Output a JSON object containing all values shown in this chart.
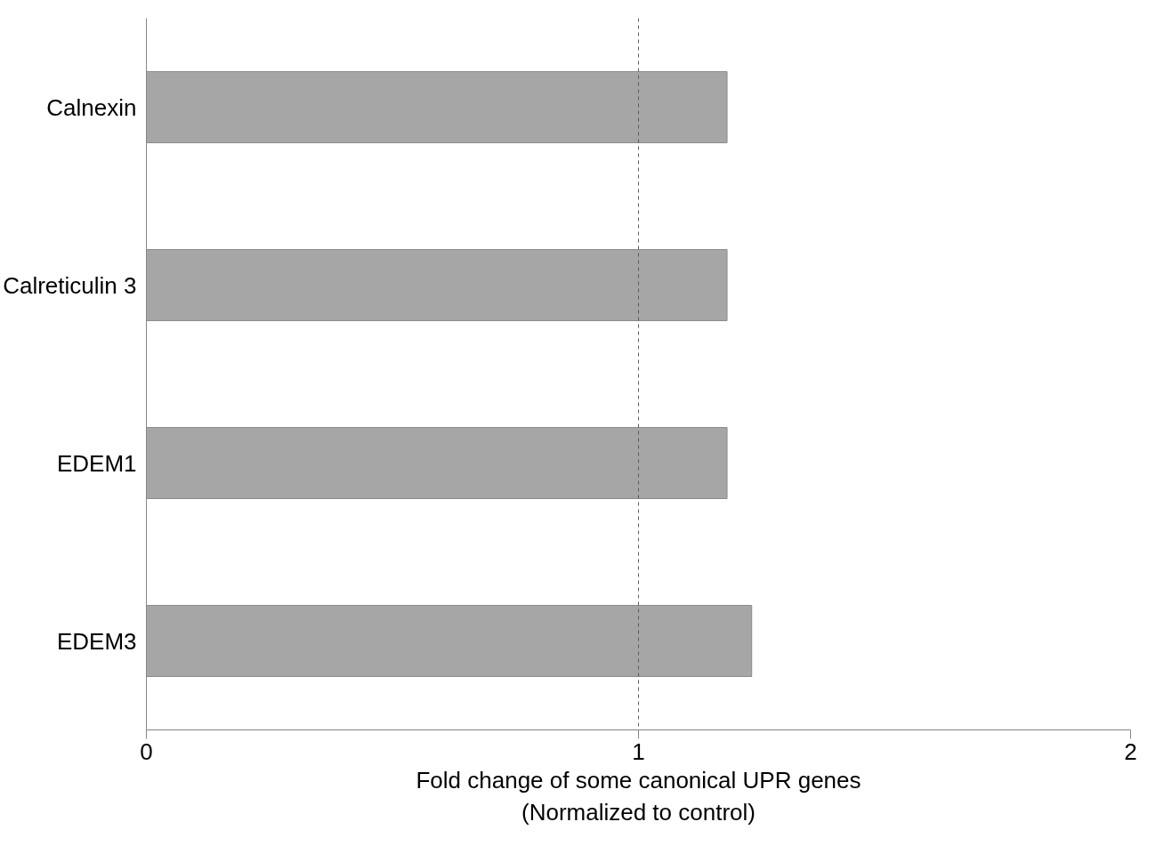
{
  "chart_data": {
    "type": "bar",
    "orientation": "horizontal",
    "categories": [
      "Calnexin",
      "Calreticulin 3",
      "EDEM1",
      "EDEM3"
    ],
    "values": [
      1.18,
      1.18,
      1.18,
      1.23
    ],
    "color": "#a6a6a6",
    "xlim": [
      0,
      2
    ],
    "xticks": [
      0,
      1,
      2
    ],
    "xlabel": "Fold change of some canonical UPR genes\n(Normalized to control)",
    "ref_lines": [
      {
        "axis": "x",
        "value": 1,
        "line_style": "dashed",
        "color": "#595959"
      }
    ],
    "grid": false
  }
}
